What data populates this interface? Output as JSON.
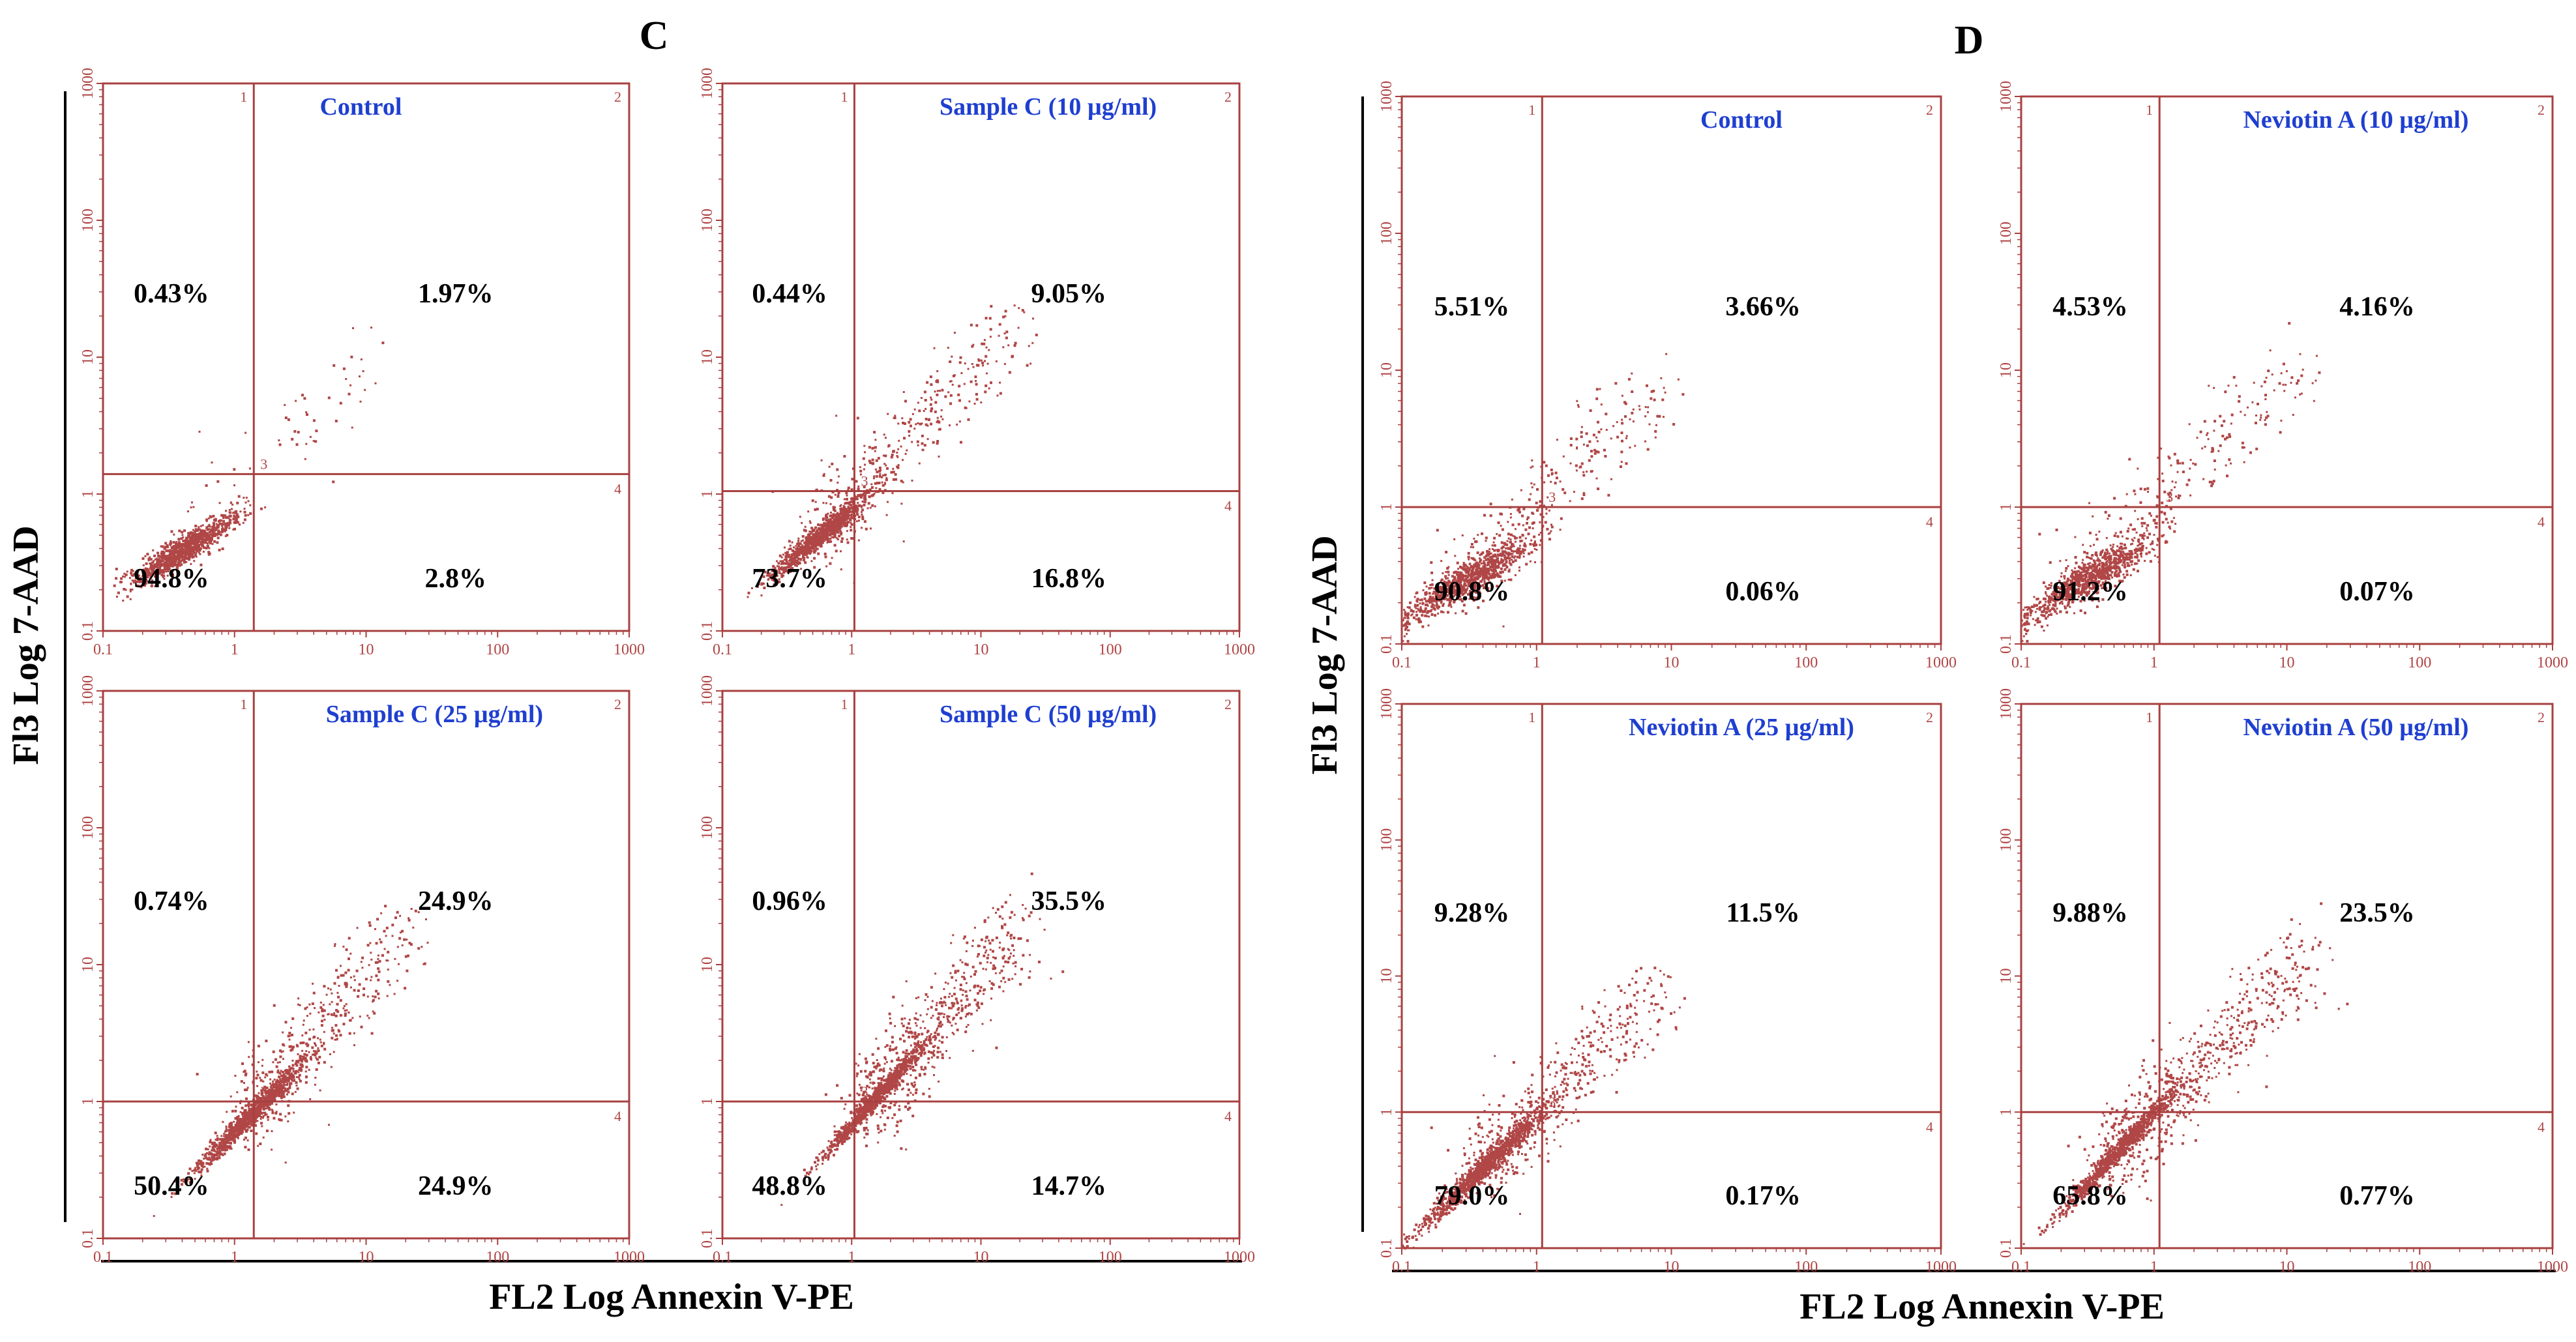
{
  "colors": {
    "dot": "#b04646",
    "frame": "#a84040",
    "title": "#1f3fd0",
    "text": "#000000"
  },
  "chart_data": [
    {
      "type": "scatter",
      "panel": "C",
      "xlabel": "FL2 Log Annexin V-PE",
      "ylabel": "Fl3 Log 7-AAD",
      "x_scale": "log",
      "y_scale": "log",
      "xlim": [
        0.1,
        1000
      ],
      "ylim": [
        0.1,
        1000
      ],
      "x_ticks": [
        "0.1",
        "1",
        "10",
        "100",
        "1000"
      ],
      "y_ticks": [
        "0.1",
        "1",
        "10",
        "100",
        "1000"
      ],
      "quadrant_labels": [
        "1",
        "2",
        "3",
        "4"
      ],
      "plots": [
        {
          "title": "Control",
          "gate": [
            1.4,
            1.4
          ],
          "quadrants": [
            "0.43%",
            "1.97%",
            "94.8%",
            "2.8%"
          ],
          "cloud": {
            "cx": 0.4,
            "cy": 0.4,
            "spread": 0.5,
            "elong": 0.5,
            "tail": 0.06,
            "tail_to": 12,
            "n": 1100
          }
        },
        {
          "title": "Sample C (10 µg/ml)",
          "gate": [
            1.05,
            1.05
          ],
          "quadrants": [
            "0.44%",
            "9.05%",
            "73.7%",
            "16.8%"
          ],
          "cloud": {
            "cx": 0.55,
            "cy": 0.5,
            "spread": 0.5,
            "elong": 0.7,
            "tail": 0.3,
            "tail_to": 18,
            "n": 1400
          }
        },
        {
          "title": "Sample C (25 µg/ml)",
          "gate": [
            1.4,
            1.0
          ],
          "quadrants": [
            "0.74%",
            "24.9%",
            "50.4%",
            "24.9%"
          ],
          "cloud": {
            "cx": 1.3,
            "cy": 0.8,
            "spread": 0.55,
            "elong": 0.9,
            "tail": 0.3,
            "tail_to": 20,
            "n": 1500
          }
        },
        {
          "title": "Sample C (50 µg/ml)",
          "gate": [
            1.05,
            1.0
          ],
          "quadrants": [
            "0.96%",
            "35.5%",
            "48.8%",
            "14.7%"
          ],
          "cloud": {
            "cx": 1.4,
            "cy": 1.0,
            "spread": 0.5,
            "elong": 1.0,
            "tail": 0.4,
            "tail_to": 20,
            "n": 1600
          }
        }
      ]
    },
    {
      "type": "scatter",
      "panel": "D",
      "xlabel": "FL2 Log Annexin V-PE",
      "ylabel": "Fl3 Log 7-AAD",
      "x_scale": "log",
      "y_scale": "log",
      "xlim": [
        0.1,
        1000
      ],
      "ylim": [
        0.1,
        1000
      ],
      "x_ticks": [
        "0.1",
        "1",
        "10",
        "100",
        "1000"
      ],
      "y_ticks": [
        "0.1",
        "1",
        "10",
        "100",
        "1000"
      ],
      "quadrant_labels": [
        "1",
        "2",
        "3",
        "4"
      ],
      "plots": [
        {
          "title": "Control",
          "gate": [
            1.1,
            1.0
          ],
          "quadrants": [
            "5.51%",
            "3.66%",
            "90.8%",
            "0.06%"
          ],
          "cloud": {
            "cx": 0.3,
            "cy": 0.3,
            "spread": 0.6,
            "elong": 0.5,
            "tail": 0.25,
            "tail_to": 8,
            "n": 1200
          }
        },
        {
          "title": "Neviotin A (10 µg/ml)",
          "gate": [
            1.1,
            1.0
          ],
          "quadrants": [
            "4.53%",
            "4.16%",
            "91.2%",
            "0.07%"
          ],
          "cloud": {
            "cx": 0.3,
            "cy": 0.3,
            "spread": 0.6,
            "elong": 0.5,
            "tail": 0.25,
            "tail_to": 12,
            "n": 1200
          }
        },
        {
          "title": "Neviotin A (25 µg/ml)",
          "gate": [
            1.1,
            1.0
          ],
          "quadrants": [
            "9.28%",
            "11.5%",
            "79.0%",
            "0.17%"
          ],
          "cloud": {
            "cx": 0.4,
            "cy": 0.4,
            "spread": 0.6,
            "elong": 0.9,
            "tail": 0.3,
            "tail_to": 8,
            "n": 1600
          }
        },
        {
          "title": "Neviotin A (50 µg/ml)",
          "gate": [
            1.1,
            1.0
          ],
          "quadrants": [
            "9.88%",
            "23.5%",
            "65.8%",
            "0.77%"
          ],
          "cloud": {
            "cx": 0.5,
            "cy": 0.5,
            "spread": 0.55,
            "elong": 1.0,
            "tail": 0.4,
            "tail_to": 15,
            "n": 1700
          }
        }
      ]
    }
  ]
}
